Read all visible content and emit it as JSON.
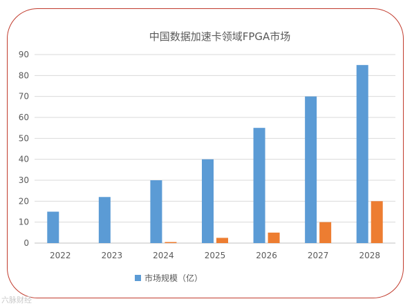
{
  "chart_data": {
    "type": "bar",
    "title": "中国数据加速卡领域FPGA市场",
    "categories": [
      "2022",
      "2023",
      "2024",
      "2025",
      "2026",
      "2027",
      "2028"
    ],
    "series": [
      {
        "name": "市场规模（亿）",
        "color": "#5b9bd5",
        "values": [
          15,
          22,
          30,
          40,
          55,
          70,
          85
        ]
      },
      {
        "name": "",
        "color": "#ed7d31",
        "values": [
          0,
          0,
          0.5,
          2.5,
          5,
          10,
          20
        ]
      }
    ],
    "ylim": [
      0,
      90
    ],
    "yticks": [
      0,
      10,
      20,
      30,
      40,
      50,
      60,
      70,
      80,
      90
    ],
    "grid": true,
    "legend": "bottom"
  },
  "watermark": "六脉财经"
}
